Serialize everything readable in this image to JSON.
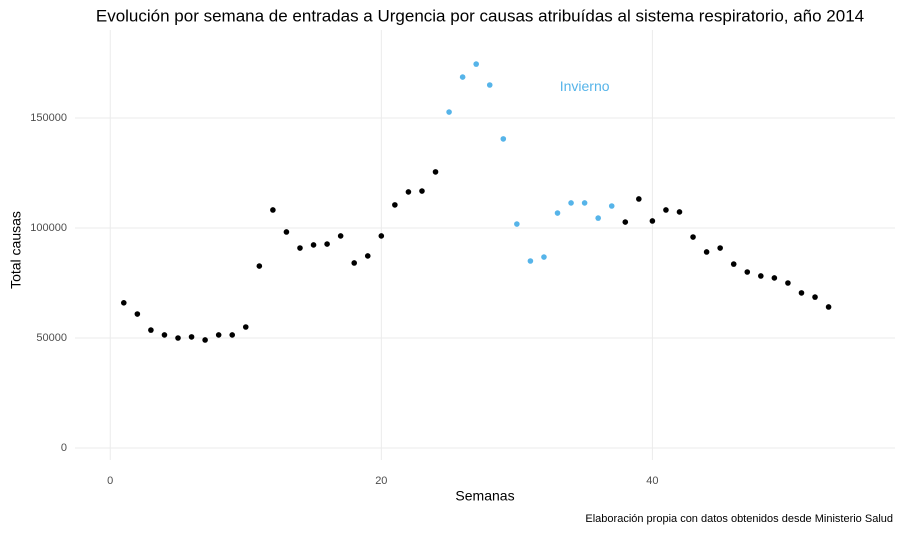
{
  "chart_data": {
    "type": "scatter",
    "title": "Evolución por semana de entradas a Urgencia por causas atribuídas al sistema respiratorio, año 2014",
    "x_label": "Semanas",
    "y_label": "Total causas",
    "caption": "Elaboración propia con datos obtenidos desde Ministerio Salud",
    "series": [
      {
        "color": "#000000",
        "x": [
          1,
          2,
          3,
          4,
          5,
          6,
          7,
          8,
          9,
          10,
          11,
          12,
          13,
          14,
          15,
          16,
          17,
          18,
          19,
          20,
          21,
          22,
          23,
          24,
          38,
          39,
          40,
          41,
          42,
          43,
          44,
          45,
          46,
          47,
          48,
          49,
          50,
          51,
          52,
          53
        ],
        "values": [
          66000,
          60900,
          53600,
          51400,
          50000,
          50500,
          49100,
          51400,
          51400,
          55000,
          82700,
          108200,
          98200,
          90900,
          92300,
          92700,
          96400,
          84100,
          87300,
          96400,
          110500,
          116400,
          116800,
          125500,
          102700,
          113200,
          103200,
          108200,
          107300,
          95900,
          89100,
          90900,
          83600,
          80000,
          78200,
          77300,
          75000,
          70500,
          68600,
          64100
        ]
      },
      {
        "color": "#56b4e9",
        "x": [
          25,
          26,
          27,
          28,
          29,
          30,
          31,
          32,
          33,
          34,
          35,
          36,
          37
        ],
        "values": [
          152700,
          168600,
          174500,
          165000,
          140500,
          101800,
          85000,
          86800,
          106800,
          111400,
          111400,
          104500,
          110000
        ]
      }
    ],
    "annotations": [
      {
        "text": "Invierno",
        "x": 35,
        "y": 164000,
        "color": "#56b4e9"
      }
    ],
    "xlim": [
      -2.6,
      57.9
    ],
    "ylim": [
      -5450,
      190000
    ],
    "xticks": [
      0,
      20,
      40
    ],
    "yticks": [
      0,
      50000,
      100000,
      150000
    ],
    "grid": true
  }
}
